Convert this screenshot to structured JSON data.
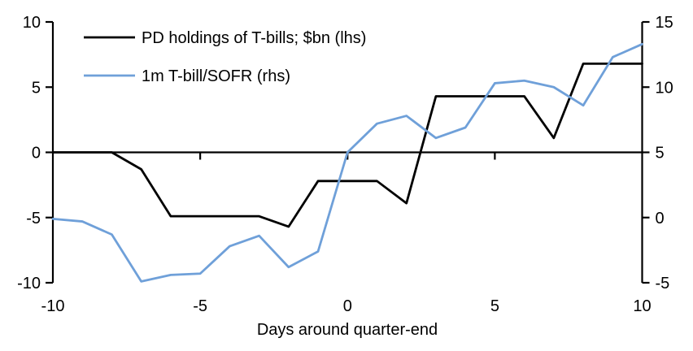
{
  "chart_data": {
    "type": "line",
    "title": "",
    "xlabel": "Days around quarter-end",
    "x": [
      -10,
      -9,
      -8,
      -7,
      -6,
      -5,
      -4,
      -3,
      -2,
      -1,
      0,
      1,
      2,
      3,
      4,
      5,
      6,
      7,
      8,
      9,
      10
    ],
    "series": [
      {
        "name": "PD holdings of T-bills; $bn (lhs)",
        "axis": "left",
        "color": "#000000",
        "values": [
          0,
          0,
          0,
          -1.3,
          -4.9,
          -4.9,
          -4.9,
          -4.9,
          -5.7,
          -2.2,
          -2.2,
          -2.2,
          -3.9,
          4.3,
          4.3,
          4.3,
          4.3,
          1.1,
          6.8,
          6.8,
          6.8
        ]
      },
      {
        "name": "1m T-bill/SOFR (rhs)",
        "axis": "right",
        "color": "#6fa0d9",
        "values": [
          -0.1,
          -0.3,
          -1.3,
          -4.9,
          -4.4,
          -4.3,
          -2.2,
          -1.4,
          -3.8,
          -2.6,
          5.0,
          7.2,
          7.8,
          6.1,
          6.9,
          10.3,
          10.5,
          10.0,
          8.6,
          12.3,
          13.3
        ]
      }
    ],
    "axes": {
      "left": {
        "min": -10,
        "max": 10,
        "ticks": [
          10,
          5,
          0,
          -5,
          -10
        ]
      },
      "right": {
        "min": -5,
        "max": 15,
        "ticks": [
          15,
          10,
          5,
          0,
          -5
        ]
      },
      "x": {
        "min": -10,
        "max": 10,
        "ticks": [
          -10,
          -5,
          0,
          5,
          10
        ]
      }
    },
    "zero_line": true,
    "grid": false,
    "legend_position": "top-left",
    "axis_color": "#000000"
  }
}
